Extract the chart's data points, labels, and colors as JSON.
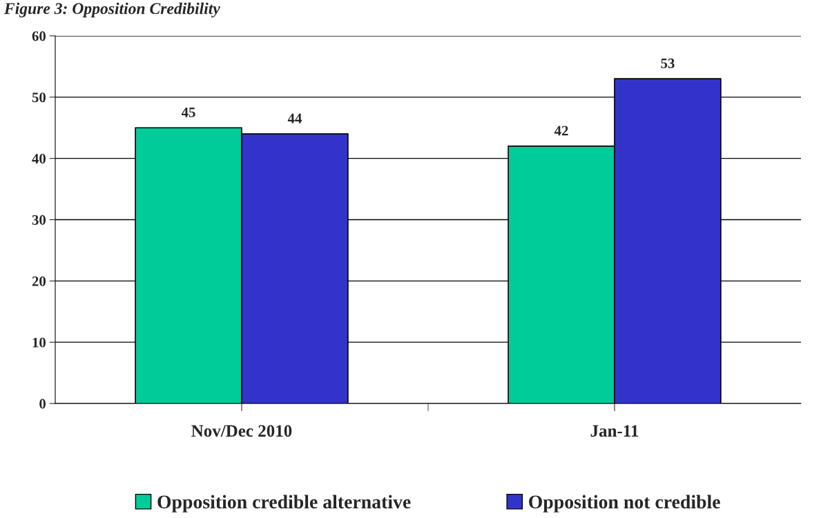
{
  "chart_data": {
    "type": "bar",
    "title": "Figure 3: Opposition Credibility",
    "categories": [
      "Nov/Dec 2010",
      "Jan-11"
    ],
    "series": [
      {
        "name": "Opposition credible alternative",
        "color": "#00cc99",
        "values": [
          45,
          42
        ]
      },
      {
        "name": "Opposition not credible",
        "color": "#3333cc",
        "values": [
          44,
          53
        ]
      }
    ],
    "ylim": [
      0,
      60
    ],
    "yticks": [
      0,
      10,
      20,
      30,
      40,
      50,
      60
    ],
    "grid": "y",
    "legend": "bottom",
    "data_labels": true
  }
}
